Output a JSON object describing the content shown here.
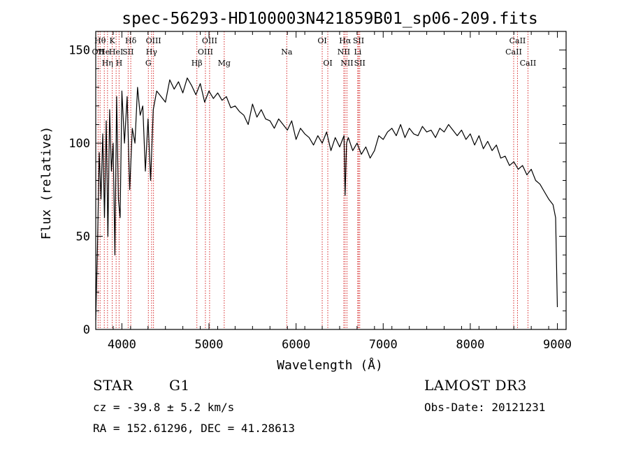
{
  "chart_data": {
    "type": "line",
    "title": "spec-56293-HD100003N421859B01_sp06-209.fits",
    "xlabel": "Wavelength (Å)",
    "ylabel": "Flux (relative)",
    "xlim": [
      3700,
      9100
    ],
    "ylim": [
      0,
      160
    ],
    "xticks": [
      4000,
      5000,
      6000,
      7000,
      8000,
      9000
    ],
    "yticks": [
      0,
      50,
      100,
      150
    ],
    "series": [
      {
        "name": "flux",
        "x": [
          3700,
          3720,
          3740,
          3760,
          3780,
          3800,
          3820,
          3840,
          3860,
          3880,
          3900,
          3920,
          3940,
          3960,
          3980,
          4000,
          4030,
          4060,
          4090,
          4120,
          4150,
          4180,
          4210,
          4240,
          4270,
          4300,
          4330,
          4360,
          4400,
          4450,
          4500,
          4550,
          4600,
          4650,
          4700,
          4750,
          4800,
          4850,
          4900,
          4950,
          5000,
          5050,
          5100,
          5150,
          5200,
          5250,
          5300,
          5350,
          5400,
          5450,
          5500,
          5550,
          5600,
          5650,
          5700,
          5750,
          5800,
          5850,
          5900,
          5950,
          6000,
          6050,
          6100,
          6150,
          6200,
          6250,
          6300,
          6350,
          6400,
          6450,
          6500,
          6550,
          6563,
          6580,
          6600,
          6650,
          6700,
          6750,
          6800,
          6850,
          6900,
          6950,
          7000,
          7050,
          7100,
          7150,
          7200,
          7250,
          7300,
          7350,
          7400,
          7450,
          7500,
          7550,
          7600,
          7650,
          7700,
          7750,
          7800,
          7850,
          7900,
          7950,
          8000,
          8050,
          8100,
          8150,
          8200,
          8250,
          8300,
          8350,
          8400,
          8450,
          8500,
          8550,
          8600,
          8650,
          8700,
          8750,
          8800,
          8850,
          8900,
          8950,
          8980,
          9000
        ],
        "y": [
          5,
          45,
          95,
          70,
          105,
          60,
          112,
          50,
          118,
          85,
          100,
          40,
          125,
          70,
          60,
          128,
          100,
          125,
          75,
          108,
          100,
          130,
          115,
          120,
          85,
          113,
          80,
          118,
          128,
          125,
          122,
          134,
          129,
          133,
          127,
          135,
          131,
          126,
          132,
          122,
          128,
          124,
          127,
          123,
          125,
          119,
          120,
          117,
          115,
          110,
          121,
          114,
          118,
          113,
          112,
          108,
          113,
          110,
          107,
          112,
          102,
          108,
          105,
          103,
          99,
          104,
          100,
          106,
          96,
          103,
          98,
          104,
          72,
          100,
          103,
          96,
          100,
          94,
          98,
          92,
          96,
          104,
          102,
          106,
          108,
          104,
          110,
          103,
          108,
          105,
          104,
          109,
          106,
          107,
          103,
          108,
          106,
          110,
          107,
          104,
          107,
          102,
          105,
          99,
          104,
          97,
          101,
          96,
          99,
          92,
          93,
          88,
          90,
          86,
          88,
          83,
          86,
          80,
          78,
          74,
          70,
          67,
          60,
          12
        ]
      }
    ],
    "lines": [
      {
        "wl": 3727,
        "label": "OII",
        "row": 1
      },
      {
        "wl": 3750,
        "label": "Hθ",
        "row": 0
      },
      {
        "wl": 3798,
        "label": "He",
        "row": 1
      },
      {
        "wl": 3835,
        "label": "Hη",
        "row": 2
      },
      {
        "wl": 3889,
        "label": "K",
        "row": 0
      },
      {
        "wl": 3934,
        "label": "HeI",
        "row": 1
      },
      {
        "wl": 3968,
        "label": "H",
        "row": 2
      },
      {
        "wl": 4072,
        "label": "SII",
        "row": 1
      },
      {
        "wl": 4102,
        "label": "Hδ",
        "row": 0
      },
      {
        "wl": 4304,
        "label": "G",
        "row": 2
      },
      {
        "wl": 4341,
        "label": "Hγ",
        "row": 1
      },
      {
        "wl": 4363,
        "label": "OIII",
        "row": 0
      },
      {
        "wl": 4861,
        "label": "Hβ",
        "row": 2
      },
      {
        "wl": 4959,
        "label": "OIII",
        "row": 1
      },
      {
        "wl": 5007,
        "label": "OIII",
        "row": 0
      },
      {
        "wl": 5175,
        "label": "Mg",
        "row": 2
      },
      {
        "wl": 5893,
        "label": "Na",
        "row": 1
      },
      {
        "wl": 6300,
        "label": "OI",
        "row": 0
      },
      {
        "wl": 6364,
        "label": "OI",
        "row": 2
      },
      {
        "wl": 6548,
        "label": "NII",
        "row": 1
      },
      {
        "wl": 6563,
        "label": "Hα",
        "row": 0
      },
      {
        "wl": 6584,
        "label": "NII",
        "row": 2
      },
      {
        "wl": 6708,
        "label": "Li",
        "row": 1
      },
      {
        "wl": 6717,
        "label": "SII",
        "row": 0
      },
      {
        "wl": 6731,
        "label": "SII",
        "row": 2
      },
      {
        "wl": 8498,
        "label": "CaII",
        "row": 1
      },
      {
        "wl": 8542,
        "label": "CaII",
        "row": 0
      },
      {
        "wl": 8662,
        "label": "CaII",
        "row": 2
      }
    ]
  },
  "info": {
    "object_class": "STAR",
    "subclass": "G1",
    "survey": "LAMOST DR3",
    "cz": "cz = -39.8 ± 5.2 km/s",
    "obs_date": "Obs-Date: 20121231",
    "coords": "RA = 152.61296, DEC =  41.28613"
  },
  "colors": {
    "line": "#000000",
    "marker": "#d62728",
    "axis": "#000000"
  }
}
